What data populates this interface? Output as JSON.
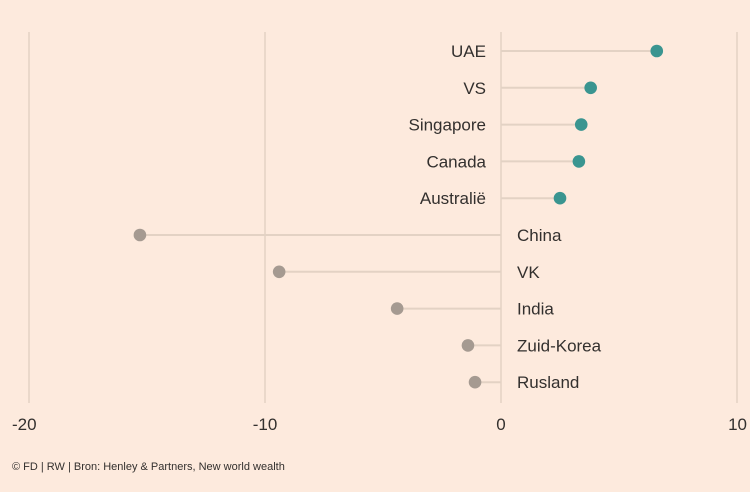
{
  "chart_data": {
    "type": "lollipop",
    "title": "",
    "xlabel": "",
    "ylabel": "",
    "xlim": [
      -20,
      10
    ],
    "xticks": [
      "-20",
      "-10",
      "0",
      "10"
    ],
    "xtick_values": [
      -20,
      -10,
      0,
      10
    ],
    "grid": true,
    "categories": [
      "UAE",
      "VS",
      "Singapore",
      "Canada",
      "Australië",
      "China",
      "VK",
      "India",
      "Zuid-Korea",
      "Rusland"
    ],
    "values": [
      6.6,
      3.8,
      3.4,
      3.3,
      2.5,
      -15.3,
      -9.4,
      -4.4,
      -1.4,
      -1.1
    ],
    "colors": {
      "positive": "#3a9590",
      "negative": "#a59a91",
      "stem": "#e3d2c4",
      "grid": "#e3d2c4",
      "background": "#fdeadd"
    }
  },
  "footer": "© FD | RW | Bron: Henley & Partners, New world wealth"
}
